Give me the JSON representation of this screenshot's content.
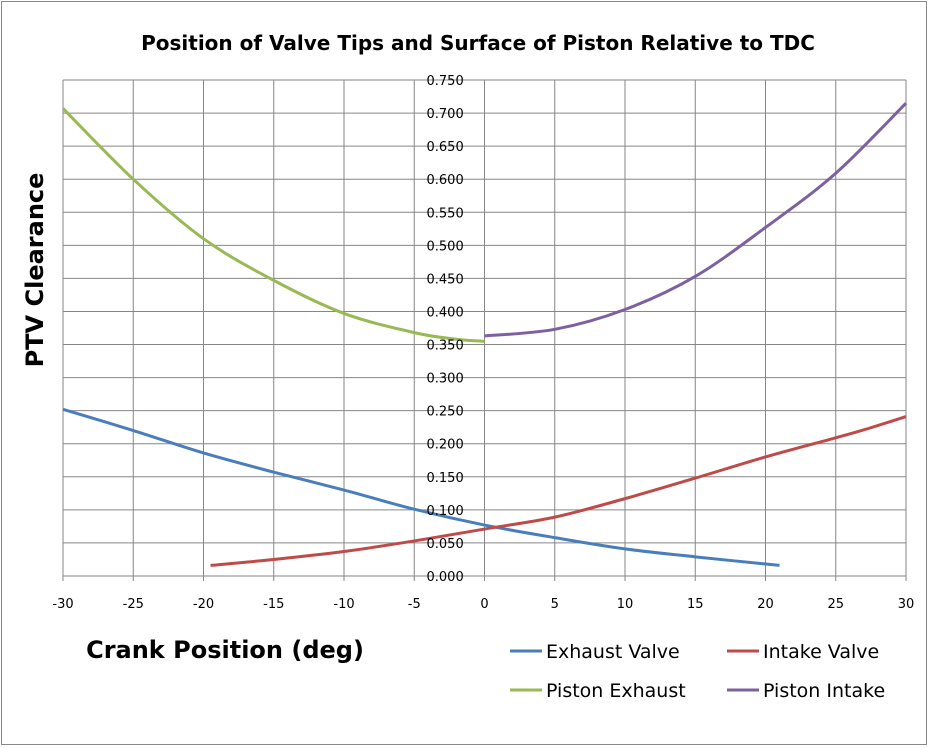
{
  "chart_data": {
    "type": "line",
    "title": "Position of Valve Tips and Surface of Piston Relative to TDC",
    "xlabel": "Crank Position (deg)",
    "ylabel": "PTV Clearance",
    "xlim": [
      -30,
      30
    ],
    "ylim": [
      0,
      0.75
    ],
    "xticks": [
      "-30",
      "-25",
      "-20",
      "-15",
      "-10",
      "-5",
      "0",
      "5",
      "10",
      "15",
      "20",
      "25",
      "30"
    ],
    "yticks": [
      "0.000",
      "0.050",
      "0.100",
      "0.150",
      "0.200",
      "0.250",
      "0.300",
      "0.350",
      "0.400",
      "0.450",
      "0.500",
      "0.550",
      "0.600",
      "0.650",
      "0.700",
      "0.750"
    ],
    "grid": true,
    "legend_placement": "bottom-right",
    "series": [
      {
        "name": "Exhaust Valve",
        "color": "#4a7ebb",
        "points": [
          [
            -30,
            0.252
          ],
          [
            -25,
            0.22
          ],
          [
            -20,
            0.186
          ],
          [
            -15,
            0.157
          ],
          [
            -10,
            0.13
          ],
          [
            -5,
            0.101
          ],
          [
            0,
            0.077
          ],
          [
            5,
            0.058
          ],
          [
            10,
            0.041
          ],
          [
            15,
            0.029
          ],
          [
            21,
            0.016
          ]
        ]
      },
      {
        "name": "Intake Valve",
        "color": "#be4b48",
        "points": [
          [
            -19.5,
            0.016
          ],
          [
            -15,
            0.025
          ],
          [
            -10,
            0.037
          ],
          [
            -5,
            0.053
          ],
          [
            0,
            0.071
          ],
          [
            5,
            0.089
          ],
          [
            10,
            0.117
          ],
          [
            15,
            0.148
          ],
          [
            20,
            0.18
          ],
          [
            25,
            0.209
          ],
          [
            27,
            0.221
          ],
          [
            30,
            0.241
          ]
        ]
      },
      {
        "name": "Piston Exhaust",
        "color": "#98b954",
        "points": [
          [
            -30,
            0.707
          ],
          [
            -25,
            0.6
          ],
          [
            -20,
            0.51
          ],
          [
            -15,
            0.447
          ],
          [
            -10,
            0.397
          ],
          [
            -5,
            0.368
          ],
          [
            -2,
            0.358
          ],
          [
            0,
            0.355
          ]
        ]
      },
      {
        "name": "Piston Intake",
        "color": "#7d60a0",
        "points": [
          [
            0,
            0.363
          ],
          [
            5,
            0.373
          ],
          [
            10,
            0.403
          ],
          [
            15,
            0.453
          ],
          [
            20,
            0.527
          ],
          [
            25,
            0.609
          ],
          [
            30,
            0.715
          ]
        ]
      }
    ]
  }
}
